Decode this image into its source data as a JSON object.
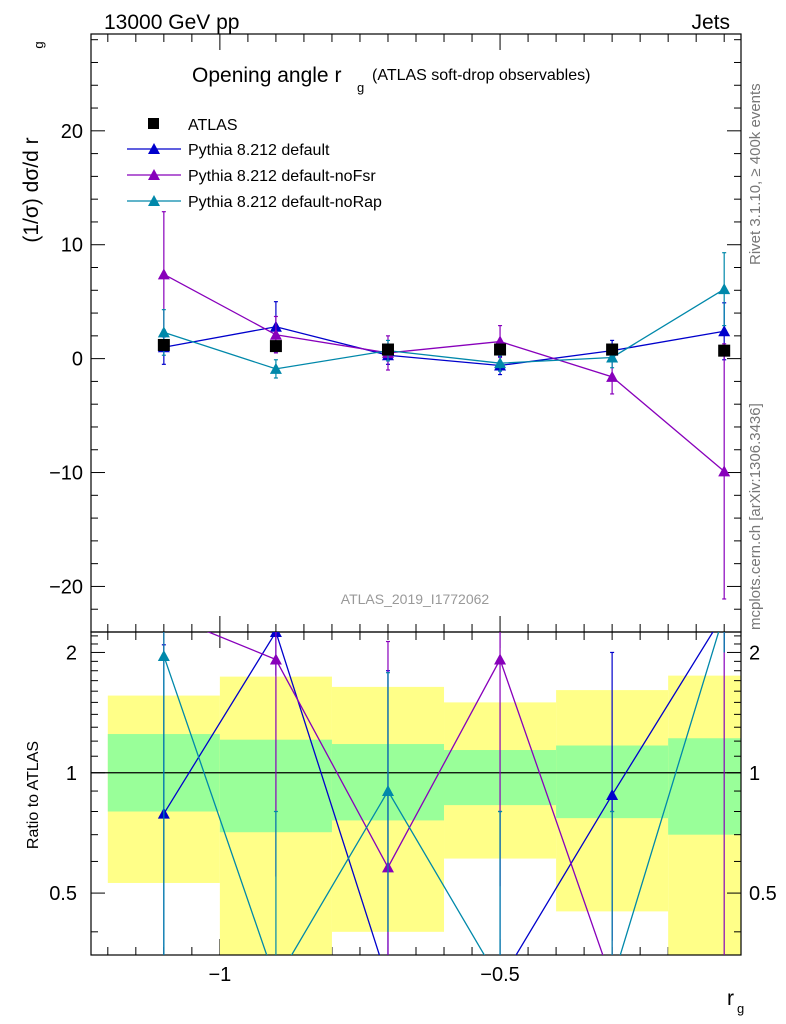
{
  "header": {
    "energy_label": "13000 GeV pp",
    "process_label": "Jets"
  },
  "side_labels": {
    "rivet": "Rivet 3.1.10, ≥ 400k events",
    "mcplots": "mcplots.cern.ch [arXiv:1306.3436]"
  },
  "analysis_id": "ATLAS_2019_I1772062",
  "colors": {
    "atlas": "#000000",
    "default": "#0000cc",
    "noFsr": "#8800bb",
    "noRap": "#0088aa",
    "band_inner": "#99ff99",
    "band_outer": "#ffff88"
  },
  "chart_data": [
    {
      "type": "line",
      "title": "Opening angle r",
      "title_sub": "g",
      "title_suffix": "(ATLAS soft-drop observables)",
      "ylabel": "(1/σ) dσ/d r",
      "ylabel_sub": "g",
      "xlim": [
        -1.23,
        -0.07
      ],
      "ylim": [
        -24,
        28.5
      ],
      "yticks": [
        20,
        10,
        0,
        -10,
        -20
      ],
      "ytick_labels": [
        "20",
        "10",
        "0",
        "−10",
        "−20"
      ],
      "x": [
        -1.1,
        -0.9,
        -0.7,
        -0.5,
        -0.3,
        -0.1
      ],
      "bins": [
        [
          -1.2,
          -1.0
        ],
        [
          -1.0,
          -0.8
        ],
        [
          -0.8,
          -0.6
        ],
        [
          -0.6,
          -0.4
        ],
        [
          -0.4,
          -0.2
        ],
        [
          -0.2,
          0.0
        ]
      ],
      "legend": [
        "ATLAS",
        "Pythia 8.212 default",
        "Pythia 8.212 default-noFsr",
        "Pythia 8.212 default-noRap"
      ],
      "series": [
        {
          "name": "ATLAS",
          "marker": "square",
          "values": [
            1.2,
            1.1,
            0.8,
            0.8,
            0.8,
            0.7
          ],
          "err": [
            0.3,
            0.3,
            0.3,
            0.3,
            0.3,
            0.3
          ]
        },
        {
          "name": "Pythia 8.212 default",
          "marker": "triangle",
          "values": [
            1.0,
            2.8,
            0.3,
            -0.6,
            0.7,
            2.4
          ],
          "err": [
            1.5,
            2.2,
            0.8,
            0.8,
            0.9,
            2.5
          ]
        },
        {
          "name": "Pythia 8.212 default-noFsr",
          "marker": "triangle",
          "values": [
            7.4,
            2.1,
            0.5,
            1.5,
            -1.6,
            -9.9
          ],
          "err": [
            5.5,
            1.6,
            1.5,
            1.4,
            1.5,
            11.2
          ]
        },
        {
          "name": "Pythia 8.212 default-noRap",
          "marker": "triangle",
          "values": [
            2.3,
            -0.9,
            0.7,
            -0.4,
            0.1,
            6.1
          ],
          "err": [
            2.0,
            0.8,
            0.9,
            0.7,
            0.9,
            3.2
          ]
        }
      ]
    },
    {
      "type": "line",
      "ylabel": "Ratio to ATLAS",
      "xlabel": "r",
      "xlabel_sub": "g",
      "xlim": [
        -1.23,
        -0.07
      ],
      "ylim": [
        0.35,
        2.25
      ],
      "yticks_major": [
        2,
        1,
        0.5
      ],
      "ytick_labels": [
        "2",
        "1",
        "0.5"
      ],
      "xticks_major": [
        -1,
        -0.5
      ],
      "xtick_labels": [
        "−1",
        "−0.5"
      ],
      "bins": [
        [
          -1.2,
          -1.0
        ],
        [
          -1.0,
          -0.8
        ],
        [
          -0.8,
          -0.6
        ],
        [
          -0.6,
          -0.4
        ],
        [
          -0.4,
          -0.2
        ],
        [
          -0.2,
          0.0
        ]
      ],
      "band_inner": [
        [
          0.8,
          1.25
        ],
        [
          0.71,
          1.21
        ],
        [
          0.76,
          1.18
        ],
        [
          0.83,
          1.14
        ],
        [
          0.77,
          1.17
        ],
        [
          0.7,
          1.22
        ]
      ],
      "band_outer": [
        [
          0.53,
          1.56
        ],
        [
          0.35,
          1.74
        ],
        [
          0.4,
          1.64
        ],
        [
          0.61,
          1.5
        ],
        [
          0.45,
          1.61
        ],
        [
          0.35,
          1.75
        ]
      ],
      "x": [
        -1.1,
        -0.9,
        -0.7,
        -0.5,
        -0.3,
        -0.1
      ],
      "series": [
        {
          "name": "Pythia 8.212 default",
          "values": [
            0.79,
            2.25,
            0.3,
            0.3,
            0.88,
            2.5
          ],
          "err_low": [
            0.5,
            0.5,
            0.5,
            0.2,
            0.5,
            0.5
          ],
          "err_high": [
            1.3,
            0.5,
            1.5,
            0.5,
            1.12,
            0.5
          ]
        },
        {
          "name": "Pythia 8.212 default-noFsr",
          "values": [
            2.5,
            1.92,
            0.58,
            1.92,
            0.3,
            0.3
          ],
          "err_low": [
            0.5,
            1.37,
            0.5,
            1.4,
            0.5,
            0.5
          ],
          "err_high": [
            0.5,
            0.5,
            1.55,
            0.5,
            0.5,
            2.4
          ]
        },
        {
          "name": "Pythia 8.212 default-noRap",
          "values": [
            1.96,
            0.3,
            0.9,
            0.3,
            0.3,
            2.5
          ],
          "err_low": [
            1.7,
            0.5,
            0.5,
            0.5,
            0.5,
            0.5
          ],
          "err_high": [
            0.3,
            0.5,
            0.88,
            0.5,
            0.5,
            0.5
          ]
        }
      ]
    }
  ]
}
